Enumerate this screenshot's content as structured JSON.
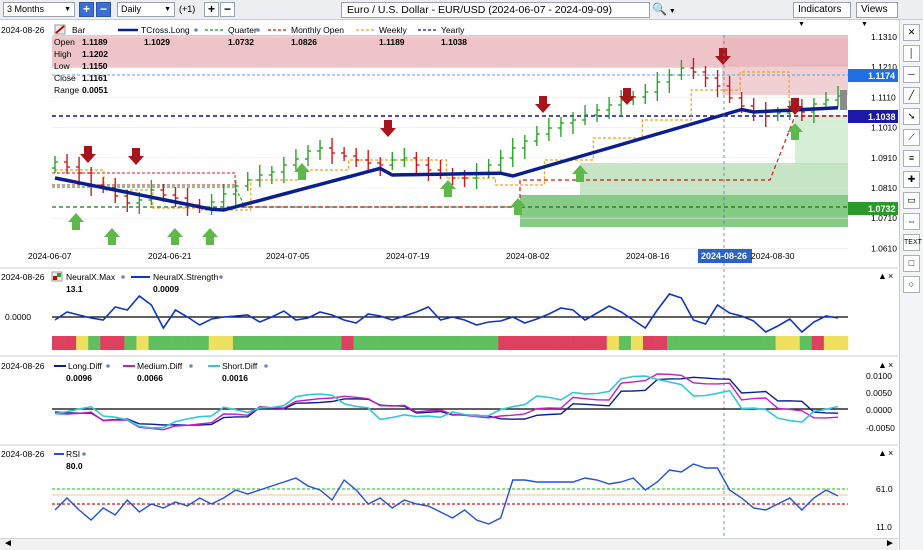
{
  "toolbar": {
    "timeframe": "3 Months",
    "interval": "Daily",
    "offset": "(+1)",
    "title": "Euro / U.S. Dollar - EUR/USD (2024-06-07 - 2024-09-09)",
    "indicators_label": "Indicators",
    "views_label": "Views"
  },
  "main_chart": {
    "date": "2024-08-26",
    "legend": [
      "Bar",
      "TCross.Long",
      "Quarter",
      "Monthly Open",
      "Weekly",
      "Yearly"
    ],
    "legend_values": [
      "1.1029",
      "1.0732",
      "1.0826",
      "1.1189",
      "1.1038"
    ],
    "ohlc_labels": [
      "Open",
      "High",
      "Low",
      "Close",
      "Range"
    ],
    "ohlc_values": [
      "1.1189",
      "1.1202",
      "1.1150",
      "1.1161",
      "0.0051"
    ],
    "price_ticks": [
      "1.1310",
      "1.1210",
      "1.1110",
      "1.1010",
      "1.0910",
      "1.0810",
      "1.0710",
      "1.0610"
    ],
    "price_markers": [
      {
        "value": "1.1174",
        "color": "#1f6fe0"
      },
      {
        "value": "1.1038",
        "color": "#1a1aa6"
      },
      {
        "value": "1.0732",
        "color": "#2a9a2a"
      }
    ],
    "date_ticks": [
      "2024-06-07",
      "2024-06-21",
      "2024-07-05",
      "2024-07-19",
      "2024-08-02",
      "2024-08-16",
      "2024-08-26",
      "2024-08-30"
    ]
  },
  "neural_panel": {
    "date": "2024-08-26",
    "legend": [
      "NeuralX.Max",
      "NeuralX.Strength"
    ],
    "values": [
      "13.1",
      "0.0009"
    ],
    "tick": "0.0000"
  },
  "diff_panel": {
    "date": "2024-08-26",
    "legend": [
      "Long.Diff",
      "Medium.Diff",
      "Short.Diff"
    ],
    "values": [
      "0.0096",
      "0.0066",
      "0.0016"
    ],
    "ticks": [
      "0.0100",
      "0.0050",
      "0.0000",
      "-0.0050"
    ]
  },
  "rsi_panel": {
    "date": "2024-08-26",
    "legend": "RSI",
    "value": "80.0",
    "ticks": [
      "61.0",
      "11.0"
    ]
  },
  "colors": {
    "tcross": "#0a1f8f",
    "weekly": "#f0a020",
    "monthly": "#d01818",
    "quarter": "#1f8f1f",
    "yearly": "#1010a0",
    "up_bar": "#2aa52a",
    "down_bar": "#d01818",
    "neural_line": "#1034c8",
    "long_diff": "#0a1f8f",
    "medium_diff": "#c020c0",
    "short_diff": "#30c8d8",
    "rsi": "#1f50e0"
  },
  "icons": {
    "side": [
      "close-icon",
      "vertical-line-icon",
      "horizontal-line-icon",
      "trend-line-icon",
      "arrow-icon",
      "trend-line-icon",
      "fib-icon",
      "cross-icon",
      "rect-icon",
      "measure-icon",
      "text-icon",
      "square-icon",
      "circle-icon"
    ]
  },
  "scrollbar": {
    "left": "◄",
    "right": "►"
  }
}
